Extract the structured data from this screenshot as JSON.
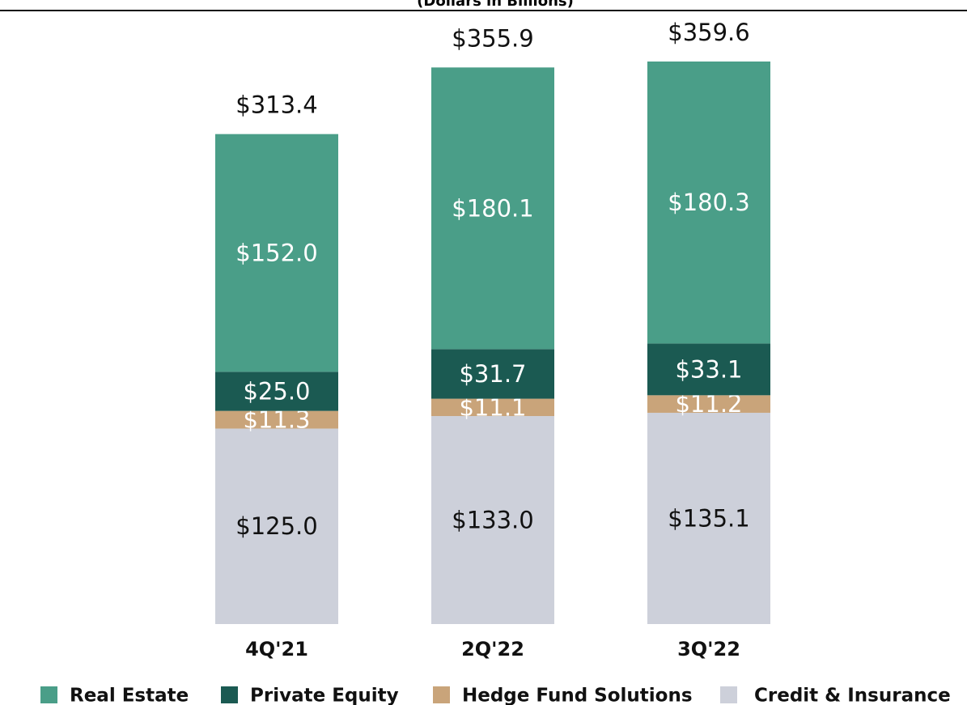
{
  "chart_data": {
    "type": "stacked_bar",
    "subtitle": "(Dollars in Billions)",
    "categories": [
      "4Q'21",
      "2Q'22",
      "3Q'22"
    ],
    "series": [
      {
        "name": "Real Estate",
        "color": "#4a9e88",
        "label_color": "#ffffff",
        "values": [
          152.0,
          180.1,
          180.3
        ],
        "value_labels": [
          "$152.0",
          "$180.1",
          "$180.3"
        ]
      },
      {
        "name": "Private Equity",
        "color": "#1b5a52",
        "label_color": "#ffffff",
        "values": [
          25.0,
          31.7,
          33.1
        ],
        "value_labels": [
          "$25.0",
          "$31.7",
          "$33.1"
        ]
      },
      {
        "name": "Hedge Fund Solutions",
        "color": "#c9a47a",
        "label_color": "#ffffff",
        "values": [
          11.3,
          11.1,
          11.2
        ],
        "value_labels": [
          "$11.3",
          "$11.1",
          "$11.2"
        ]
      },
      {
        "name": "Credit & Insurance",
        "color": "#cdd0da",
        "label_color": "#111111",
        "values": [
          125.0,
          133.0,
          135.1
        ],
        "value_labels": [
          "$125.0",
          "$133.0",
          "$135.1"
        ]
      }
    ],
    "totals": [
      313.4,
      355.9,
      359.6
    ],
    "total_labels": [
      "$313.4",
      "$355.9",
      "$359.6"
    ]
  }
}
